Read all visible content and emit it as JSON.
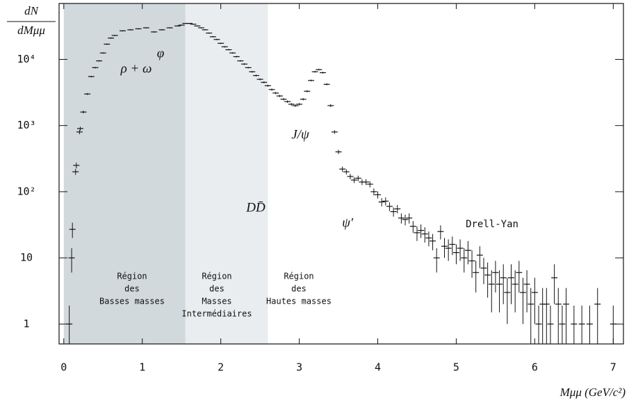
{
  "chart_data": {
    "type": "scatter",
    "log_y": true,
    "y_label": {
      "numerator": "dN",
      "denominator": "dMμμ"
    },
    "x_label": "Mμμ (GeV/c²)",
    "xlim": [
      -0.06,
      7.13
    ],
    "ylim": [
      0.5,
      70000
    ],
    "xticks": [
      0,
      1,
      2,
      3,
      4,
      5,
      6,
      7
    ],
    "yticks": [
      1,
      10,
      {
        "value": 100,
        "label": "10²"
      },
      {
        "value": 1000,
        "label": "10³"
      },
      {
        "value": 10000,
        "label": "10⁴"
      }
    ],
    "regions": [
      {
        "range": [
          0,
          1.55
        ],
        "color": "#d1d9dd"
      },
      {
        "range": [
          1.55,
          2.6
        ],
        "color": "#e9edef"
      }
    ],
    "region_labels": [
      [
        "Région",
        "des",
        "Basses masses"
      ],
      [
        "Région",
        "des",
        "Masses",
        "Intermédiaires"
      ],
      [
        "Région",
        "des",
        "Hautes masses"
      ]
    ],
    "annotations": [
      "ρ + ω",
      "φ",
      "DD̄",
      "J/ψ",
      "ψ'",
      "Drell-Yan"
    ],
    "series": [
      {
        "color": "#111111",
        "x": [
          0.07,
          0.1,
          0.11,
          0.15,
          0.16,
          0.2,
          0.21,
          0.25,
          0.3,
          0.35,
          0.4,
          0.45,
          0.5,
          0.55,
          0.6,
          0.65,
          0.75,
          0.85,
          0.95,
          1.05,
          1.15,
          1.25,
          1.35,
          1.45,
          1.5,
          1.55,
          1.6,
          1.65,
          1.7,
          1.75,
          1.8,
          1.85,
          1.9,
          1.95,
          2.0,
          2.05,
          2.1,
          2.15,
          2.2,
          2.25,
          2.3,
          2.35,
          2.4,
          2.45,
          2.5,
          2.55,
          2.6,
          2.65,
          2.7,
          2.75,
          2.8,
          2.85,
          2.9,
          2.95,
          3.0,
          3.05,
          3.1,
          3.15,
          3.2,
          3.25,
          3.3,
          3.35,
          3.4,
          3.45,
          3.5,
          3.55,
          3.6,
          3.65,
          3.7,
          3.75,
          3.8,
          3.85,
          3.9,
          3.95,
          4.0,
          4.05,
          4.1,
          4.15,
          4.2,
          4.25,
          4.3,
          4.35,
          4.4,
          4.45,
          4.5,
          4.55,
          4.6,
          4.65,
          4.7,
          4.75,
          4.8,
          4.85,
          4.9,
          4.95,
          5.0,
          5.05,
          5.1,
          5.15,
          5.2,
          5.25,
          5.3,
          5.35,
          5.4,
          5.45,
          5.5,
          5.55,
          5.6,
          5.65,
          5.7,
          5.75,
          5.8,
          5.85,
          5.9,
          5.95,
          6.0,
          6.05,
          6.1,
          6.15,
          6.2,
          6.25,
          6.3,
          6.35,
          6.4,
          6.5,
          6.6,
          6.7,
          6.8,
          7.0
        ],
        "values": [
          1,
          10,
          27,
          200,
          250,
          800,
          900,
          1600,
          3000,
          5500,
          7500,
          9500,
          12500,
          17000,
          21000,
          23000,
          27000,
          28000,
          29000,
          30000,
          26000,
          28000,
          30000,
          32000,
          33000,
          35000,
          35000,
          34000,
          32000,
          30000,
          28000,
          25000,
          22000,
          20000,
          17500,
          15500,
          14000,
          12500,
          11000,
          9500,
          8500,
          7500,
          6500,
          5700,
          5000,
          4500,
          4000,
          3500,
          3100,
          2800,
          2500,
          2300,
          2100,
          2000,
          2100,
          2500,
          3300,
          4800,
          6500,
          7000,
          6300,
          4200,
          2000,
          800,
          400,
          220,
          200,
          170,
          150,
          160,
          140,
          140,
          130,
          100,
          90,
          70,
          72,
          60,
          50,
          55,
          40,
          38,
          40,
          30,
          24,
          26,
          23,
          20,
          18,
          10,
          25,
          15,
          14,
          16,
          12,
          14,
          10,
          13,
          9,
          6,
          11,
          7,
          5.5,
          4,
          6,
          4,
          5,
          3,
          5,
          4,
          6,
          3,
          4,
          2,
          3,
          1,
          2,
          2,
          1,
          5,
          2,
          1,
          2,
          1,
          1,
          1,
          2,
          1
        ],
        "errors": [
          0.9,
          4,
          7,
          20,
          25,
          60,
          60,
          80,
          100,
          150,
          200,
          250,
          300,
          400,
          500,
          500,
          600,
          600,
          600,
          600,
          600,
          600,
          600,
          600,
          600,
          600,
          600,
          600,
          600,
          600,
          600,
          500,
          500,
          500,
          400,
          400,
          350,
          300,
          300,
          250,
          250,
          200,
          200,
          180,
          160,
          150,
          140,
          130,
          120,
          110,
          100,
          100,
          90,
          90,
          90,
          100,
          120,
          150,
          200,
          200,
          200,
          150,
          100,
          50,
          30,
          20,
          18,
          16,
          15,
          15,
          14,
          14,
          14,
          12,
          11,
          10,
          10,
          9,
          8,
          8,
          7,
          7,
          7,
          6,
          6,
          6,
          6,
          5,
          5,
          4,
          6,
          5,
          5,
          5,
          4,
          5,
          4,
          5,
          4,
          3,
          4,
          3,
          3,
          2.5,
          3,
          2.5,
          3,
          2,
          3,
          2.5,
          3,
          2,
          2.5,
          1.5,
          2,
          0.9,
          1.5,
          1.5,
          0.9,
          3,
          1.5,
          0.9,
          1.5,
          0.9,
          0.9,
          0.9,
          1.5,
          0.9
        ]
      }
    ]
  }
}
